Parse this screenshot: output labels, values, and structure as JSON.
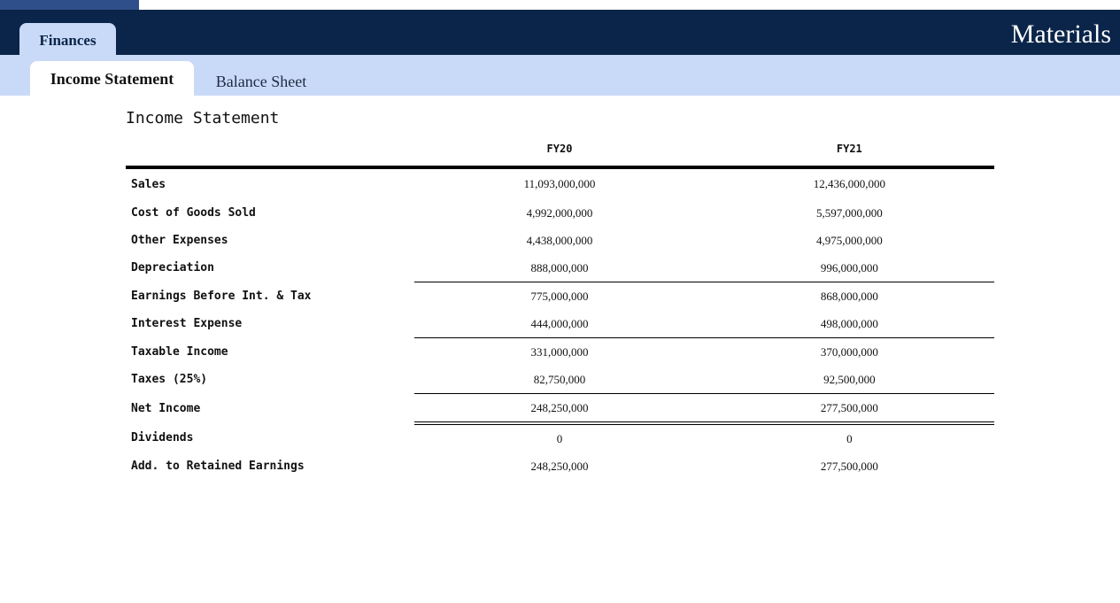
{
  "app": {
    "title": "Materials"
  },
  "main_tab": {
    "label": "Finances"
  },
  "sub_tabs": [
    {
      "label": "Income Statement",
      "active": true
    },
    {
      "label": "Balance Sheet",
      "active": false
    }
  ],
  "statement": {
    "title": "Income Statement",
    "columns": [
      "FY20",
      "FY21"
    ],
    "rows": [
      {
        "label": "Sales",
        "fy20": "11,093,000,000",
        "fy21": "12,436,000,000"
      },
      {
        "label": "Cost of Goods Sold",
        "fy20": "4,992,000,000",
        "fy21": "5,597,000,000"
      },
      {
        "label": "Other Expenses",
        "fy20": "4,438,000,000",
        "fy21": "4,975,000,000"
      },
      {
        "label": "Depreciation",
        "fy20": "888,000,000",
        "fy21": "996,000,000"
      },
      {
        "label": "Earnings Before Int. & Tax",
        "fy20": "775,000,000",
        "fy21": "868,000,000"
      },
      {
        "label": "Interest Expense",
        "fy20": "444,000,000",
        "fy21": "498,000,000"
      },
      {
        "label": "Taxable Income",
        "fy20": "331,000,000",
        "fy21": "370,000,000"
      },
      {
        "label": "Taxes (25%)",
        "fy20": "82,750,000",
        "fy21": "92,500,000"
      },
      {
        "label": "Net Income",
        "fy20": "248,250,000",
        "fy21": "277,500,000"
      },
      {
        "label": "Dividends",
        "fy20": "0",
        "fy21": "0"
      },
      {
        "label": "Add. to Retained Earnings",
        "fy20": "248,250,000",
        "fy21": "277,500,000"
      }
    ]
  },
  "colors": {
    "header_bg": "#0a2549",
    "subbar_bg": "#c9daf8",
    "accent": "#2f4f8a"
  }
}
